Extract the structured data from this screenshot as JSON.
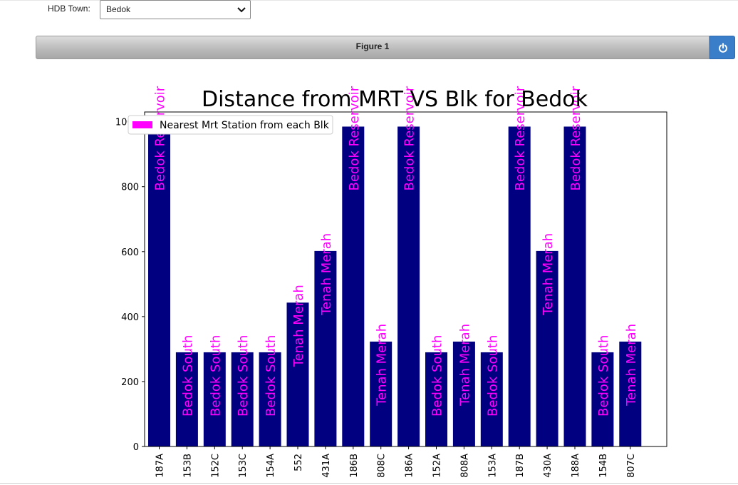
{
  "controls": {
    "town_label": "HDB Town:",
    "town_selected": "Bedok"
  },
  "figure": {
    "title_bar": "Figure 1",
    "power_icon": "power-icon"
  },
  "colors": {
    "bar": "#000080",
    "label": "#ff00ff",
    "power_button": "#3a7dc9"
  },
  "chart_data": {
    "type": "bar",
    "title": "Distance from MRT VS Blk for Bedok",
    "xlabel": "",
    "ylabel": "",
    "ylim": [
      0,
      1030
    ],
    "yticks": [
      0,
      200,
      400,
      600,
      800,
      1000
    ],
    "categories": [
      "187A",
      "153B",
      "152C",
      "153C",
      "154A",
      "552",
      "431A",
      "186B",
      "808C",
      "186A",
      "152A",
      "808A",
      "153A",
      "187B",
      "430A",
      "188A",
      "154B",
      "807C"
    ],
    "series": [
      {
        "name": "Nearest Mrt Station from each Blk",
        "values": [
          985,
          290,
          290,
          290,
          290,
          443,
          602,
          985,
          323,
          985,
          290,
          323,
          290,
          985,
          602,
          985,
          290,
          323
        ],
        "labels": [
          "Bedok Reservoir",
          "Bedok South",
          "Bedok South",
          "Bedok South",
          "Bedok South",
          "Tenah Merah",
          "Tenah Merah",
          "Bedok Reservoir",
          "Tenah Merah",
          "Bedok Reservoir",
          "Bedok South",
          "Tenah Merah",
          "Bedok South",
          "Bedok Reservoir",
          "Tenah Merah",
          "Bedok Reservoir",
          "Bedok South",
          "Tenah Merah"
        ]
      }
    ],
    "legend": "top-left",
    "grid": false
  }
}
